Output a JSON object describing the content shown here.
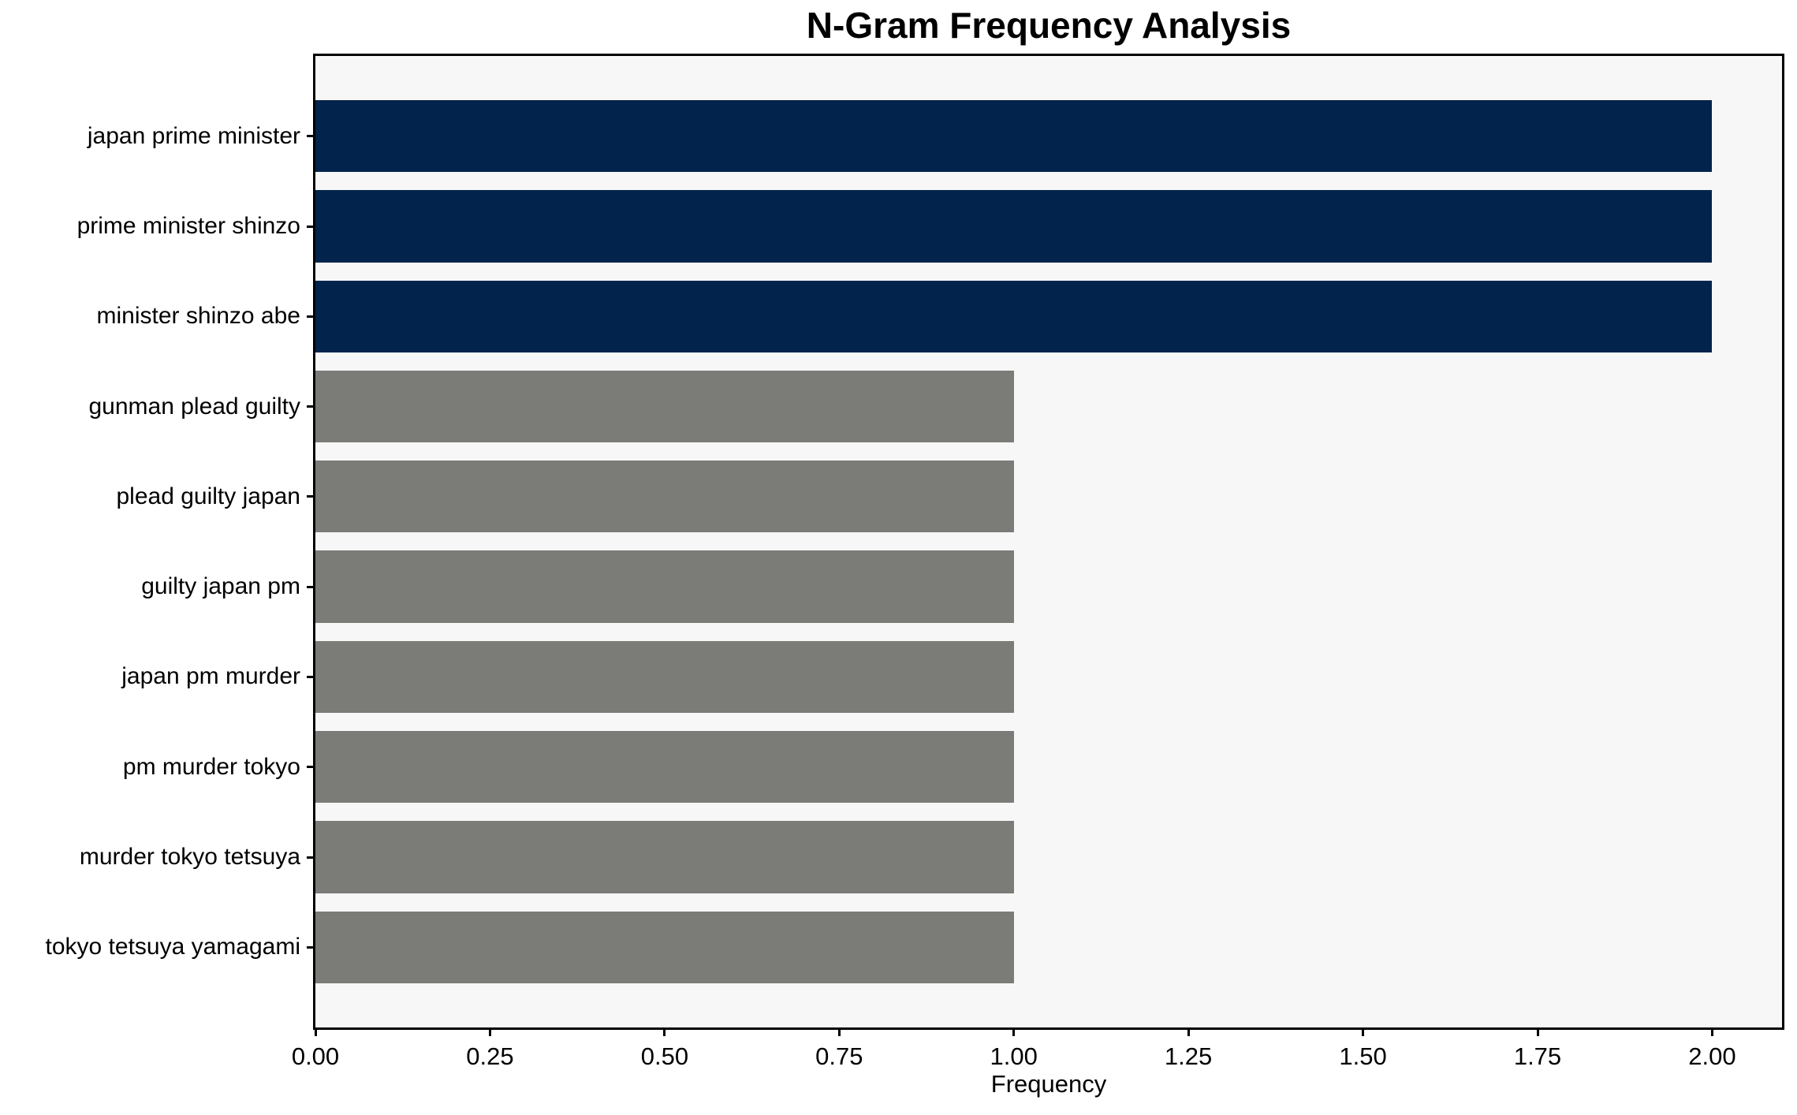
{
  "chart_data": {
    "type": "bar",
    "orientation": "horizontal",
    "title": "N-Gram Frequency Analysis",
    "xlabel": "Frequency",
    "ylabel": "",
    "categories": [
      "japan prime minister",
      "prime minister shinzo",
      "minister shinzo abe",
      "gunman plead guilty",
      "plead guilty japan",
      "guilty japan pm",
      "japan pm murder",
      "pm murder tokyo",
      "murder tokyo tetsuya",
      "tokyo tetsuya yamagami"
    ],
    "values": [
      2,
      2,
      2,
      1,
      1,
      1,
      1,
      1,
      1,
      1
    ],
    "bar_colors": [
      "#02244C",
      "#02244C",
      "#02244C",
      "#7B7B78",
      "#7B7B78",
      "#7B7B78",
      "#7B7B78",
      "#7B7B78",
      "#7B7B78",
      "#7B7B78"
    ],
    "bar_height_fraction": 0.8,
    "xlim": [
      0,
      2.1
    ],
    "xticks": [
      0,
      0.25,
      0.5,
      0.75,
      1,
      1.25,
      1.5,
      1.75,
      2
    ],
    "xtick_labels": [
      "0.00",
      "0.25",
      "0.50",
      "0.75",
      "1.00",
      "1.25",
      "1.50",
      "1.75",
      "2.00"
    ],
    "grid": false,
    "legend": false,
    "colors": {
      "highlight_bar": "#02244C",
      "regular_bar": "#7B7B78",
      "plot_background": "#F7F7F7",
      "figure_background": "#FFFFFF",
      "axis": "#000000",
      "text": "#000000"
    }
  }
}
